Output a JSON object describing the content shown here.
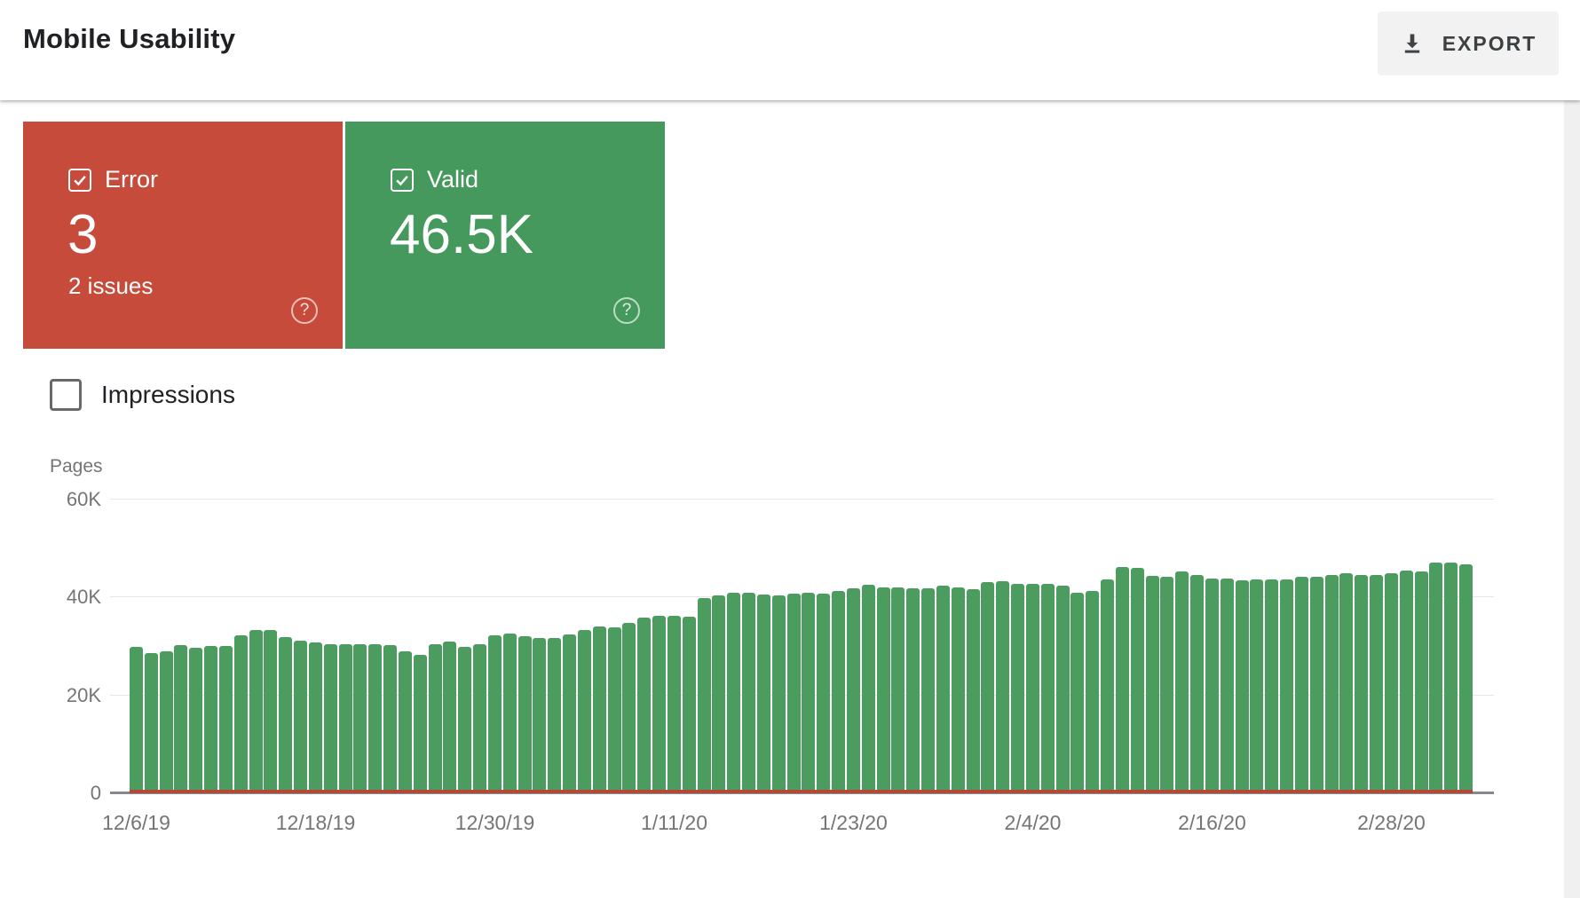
{
  "header": {
    "title": "Mobile Usability",
    "export_label": "EXPORT"
  },
  "icons": {
    "help": "?"
  },
  "cards": {
    "error": {
      "label": "Error",
      "value": "3",
      "sub": "2 issues",
      "checked": true,
      "color": "#c74b3b"
    },
    "valid": {
      "label": "Valid",
      "value": "46.5K",
      "checked": true,
      "color": "#45995c"
    }
  },
  "impressions": {
    "label": "Impressions",
    "checked": false
  },
  "chart_data": {
    "type": "bar",
    "title": "",
    "xlabel": "",
    "ylabel": "Pages",
    "ylim": [
      0,
      60000
    ],
    "grid": true,
    "y_ticks": [
      {
        "label": "60K",
        "value": 60000
      },
      {
        "label": "40K",
        "value": 40000
      },
      {
        "label": "20K",
        "value": 20000
      },
      {
        "label": "0",
        "value": 0
      }
    ],
    "x_ticks": [
      {
        "label": "12/6/19",
        "index": 0
      },
      {
        "label": "12/18/19",
        "index": 12
      },
      {
        "label": "12/30/19",
        "index": 24
      },
      {
        "label": "1/11/20",
        "index": 36
      },
      {
        "label": "1/23/20",
        "index": 48
      },
      {
        "label": "2/4/20",
        "index": 60
      },
      {
        "label": "2/16/20",
        "index": 72
      },
      {
        "label": "2/28/20",
        "index": 84
      }
    ],
    "dates": [
      "12/6/19",
      "12/7/19",
      "12/8/19",
      "12/9/19",
      "12/10/19",
      "12/11/19",
      "12/12/19",
      "12/13/19",
      "12/14/19",
      "12/15/19",
      "12/16/19",
      "12/17/19",
      "12/18/19",
      "12/19/19",
      "12/20/19",
      "12/21/19",
      "12/22/19",
      "12/23/19",
      "12/24/19",
      "12/25/19",
      "12/26/19",
      "12/27/19",
      "12/28/19",
      "12/29/19",
      "12/30/19",
      "12/31/19",
      "1/1/20",
      "1/2/20",
      "1/3/20",
      "1/4/20",
      "1/5/20",
      "1/6/20",
      "1/7/20",
      "1/8/20",
      "1/9/20",
      "1/10/20",
      "1/11/20",
      "1/12/20",
      "1/13/20",
      "1/14/20",
      "1/15/20",
      "1/16/20",
      "1/17/20",
      "1/18/20",
      "1/19/20",
      "1/20/20",
      "1/21/20",
      "1/22/20",
      "1/23/20",
      "1/24/20",
      "1/25/20",
      "1/26/20",
      "1/27/20",
      "1/28/20",
      "1/29/20",
      "1/30/20",
      "1/31/20",
      "2/1/20",
      "2/2/20",
      "2/3/20",
      "2/4/20",
      "2/5/20",
      "2/6/20",
      "2/7/20",
      "2/8/20",
      "2/9/20",
      "2/10/20",
      "2/11/20",
      "2/12/20",
      "2/13/20",
      "2/14/20",
      "2/15/20",
      "2/16/20",
      "2/17/20",
      "2/18/20",
      "2/19/20",
      "2/20/20",
      "2/21/20",
      "2/22/20",
      "2/23/20",
      "2/24/20",
      "2/25/20",
      "2/26/20",
      "2/27/20",
      "2/28/20",
      "2/29/20",
      "3/1/20",
      "3/2/20",
      "3/3/20",
      "3/4/20"
    ],
    "series": [
      {
        "name": "Valid pages",
        "color": "#4c9b5f",
        "values": [
          29700,
          28400,
          28800,
          30000,
          29500,
          29900,
          29900,
          32100,
          33200,
          33100,
          31600,
          30900,
          30600,
          30300,
          30300,
          30200,
          30200,
          30100,
          28700,
          28000,
          30300,
          30800,
          29700,
          30200,
          32100,
          32400,
          31900,
          31500,
          31500,
          32200,
          33200,
          33800,
          33700,
          34600,
          35700,
          36100,
          36000,
          35900,
          39600,
          40200,
          40800,
          40700,
          40400,
          40200,
          40500,
          40700,
          40500,
          41100,
          41700,
          42300,
          41900,
          41800,
          41600,
          41700,
          42200,
          41800,
          41400,
          42900,
          43000,
          42500,
          42500,
          42500,
          42200,
          40700,
          41000,
          43500,
          45900,
          45800,
          44100,
          44000,
          45000,
          44300,
          43700,
          43700,
          43200,
          43400,
          43400,
          43400,
          44000,
          44000,
          44300,
          44700,
          44300,
          44300,
          44700,
          45200,
          45100,
          46800,
          46900,
          46500
        ]
      },
      {
        "name": "Error pages",
        "color": "#b4493a",
        "constant_value": 3
      }
    ]
  }
}
